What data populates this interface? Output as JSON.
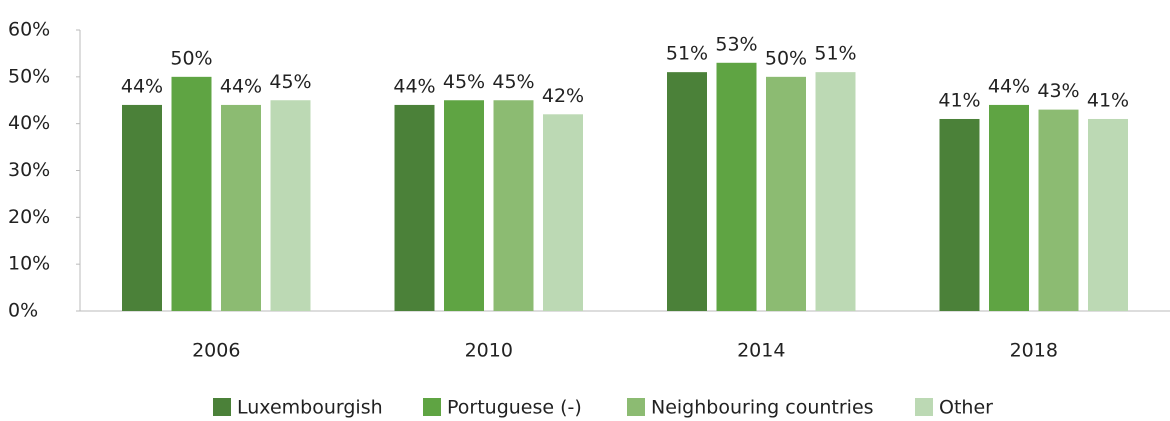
{
  "chart_data": {
    "type": "bar",
    "categories": [
      "2006",
      "2010",
      "2014",
      "2018"
    ],
    "series": [
      {
        "name": "Luxembourgish",
        "color": "#4b8139",
        "values": [
          44,
          44,
          51,
          41
        ],
        "value_labels": [
          "44%",
          "44%",
          "51%",
          "41%"
        ]
      },
      {
        "name": "Portuguese (-)",
        "color": "#5fa443",
        "values": [
          50,
          45,
          53,
          44
        ],
        "value_labels": [
          "50%",
          "45%",
          "53%",
          "44%"
        ]
      },
      {
        "name": "Neighbouring countries",
        "color": "#8cbb72",
        "values": [
          44,
          45,
          50,
          43
        ],
        "value_labels": [
          "44%",
          "45%",
          "50%",
          "43%"
        ]
      },
      {
        "name": "Other",
        "color": "#bcd9b4",
        "values": [
          45,
          42,
          51,
          41
        ],
        "value_labels": [
          "45%",
          "42%",
          "51%",
          "41%"
        ]
      }
    ],
    "ylim": [
      0,
      60
    ],
    "yticks": [
      {
        "value": 0,
        "label": "0%"
      },
      {
        "value": 10,
        "label": "10%"
      },
      {
        "value": 20,
        "label": "20%"
      },
      {
        "value": 30,
        "label": "30%"
      },
      {
        "value": 40,
        "label": "40%"
      },
      {
        "value": 50,
        "label": "50%"
      },
      {
        "value": 60,
        "label": "60%"
      }
    ],
    "grid": false,
    "legend": "bottom"
  }
}
